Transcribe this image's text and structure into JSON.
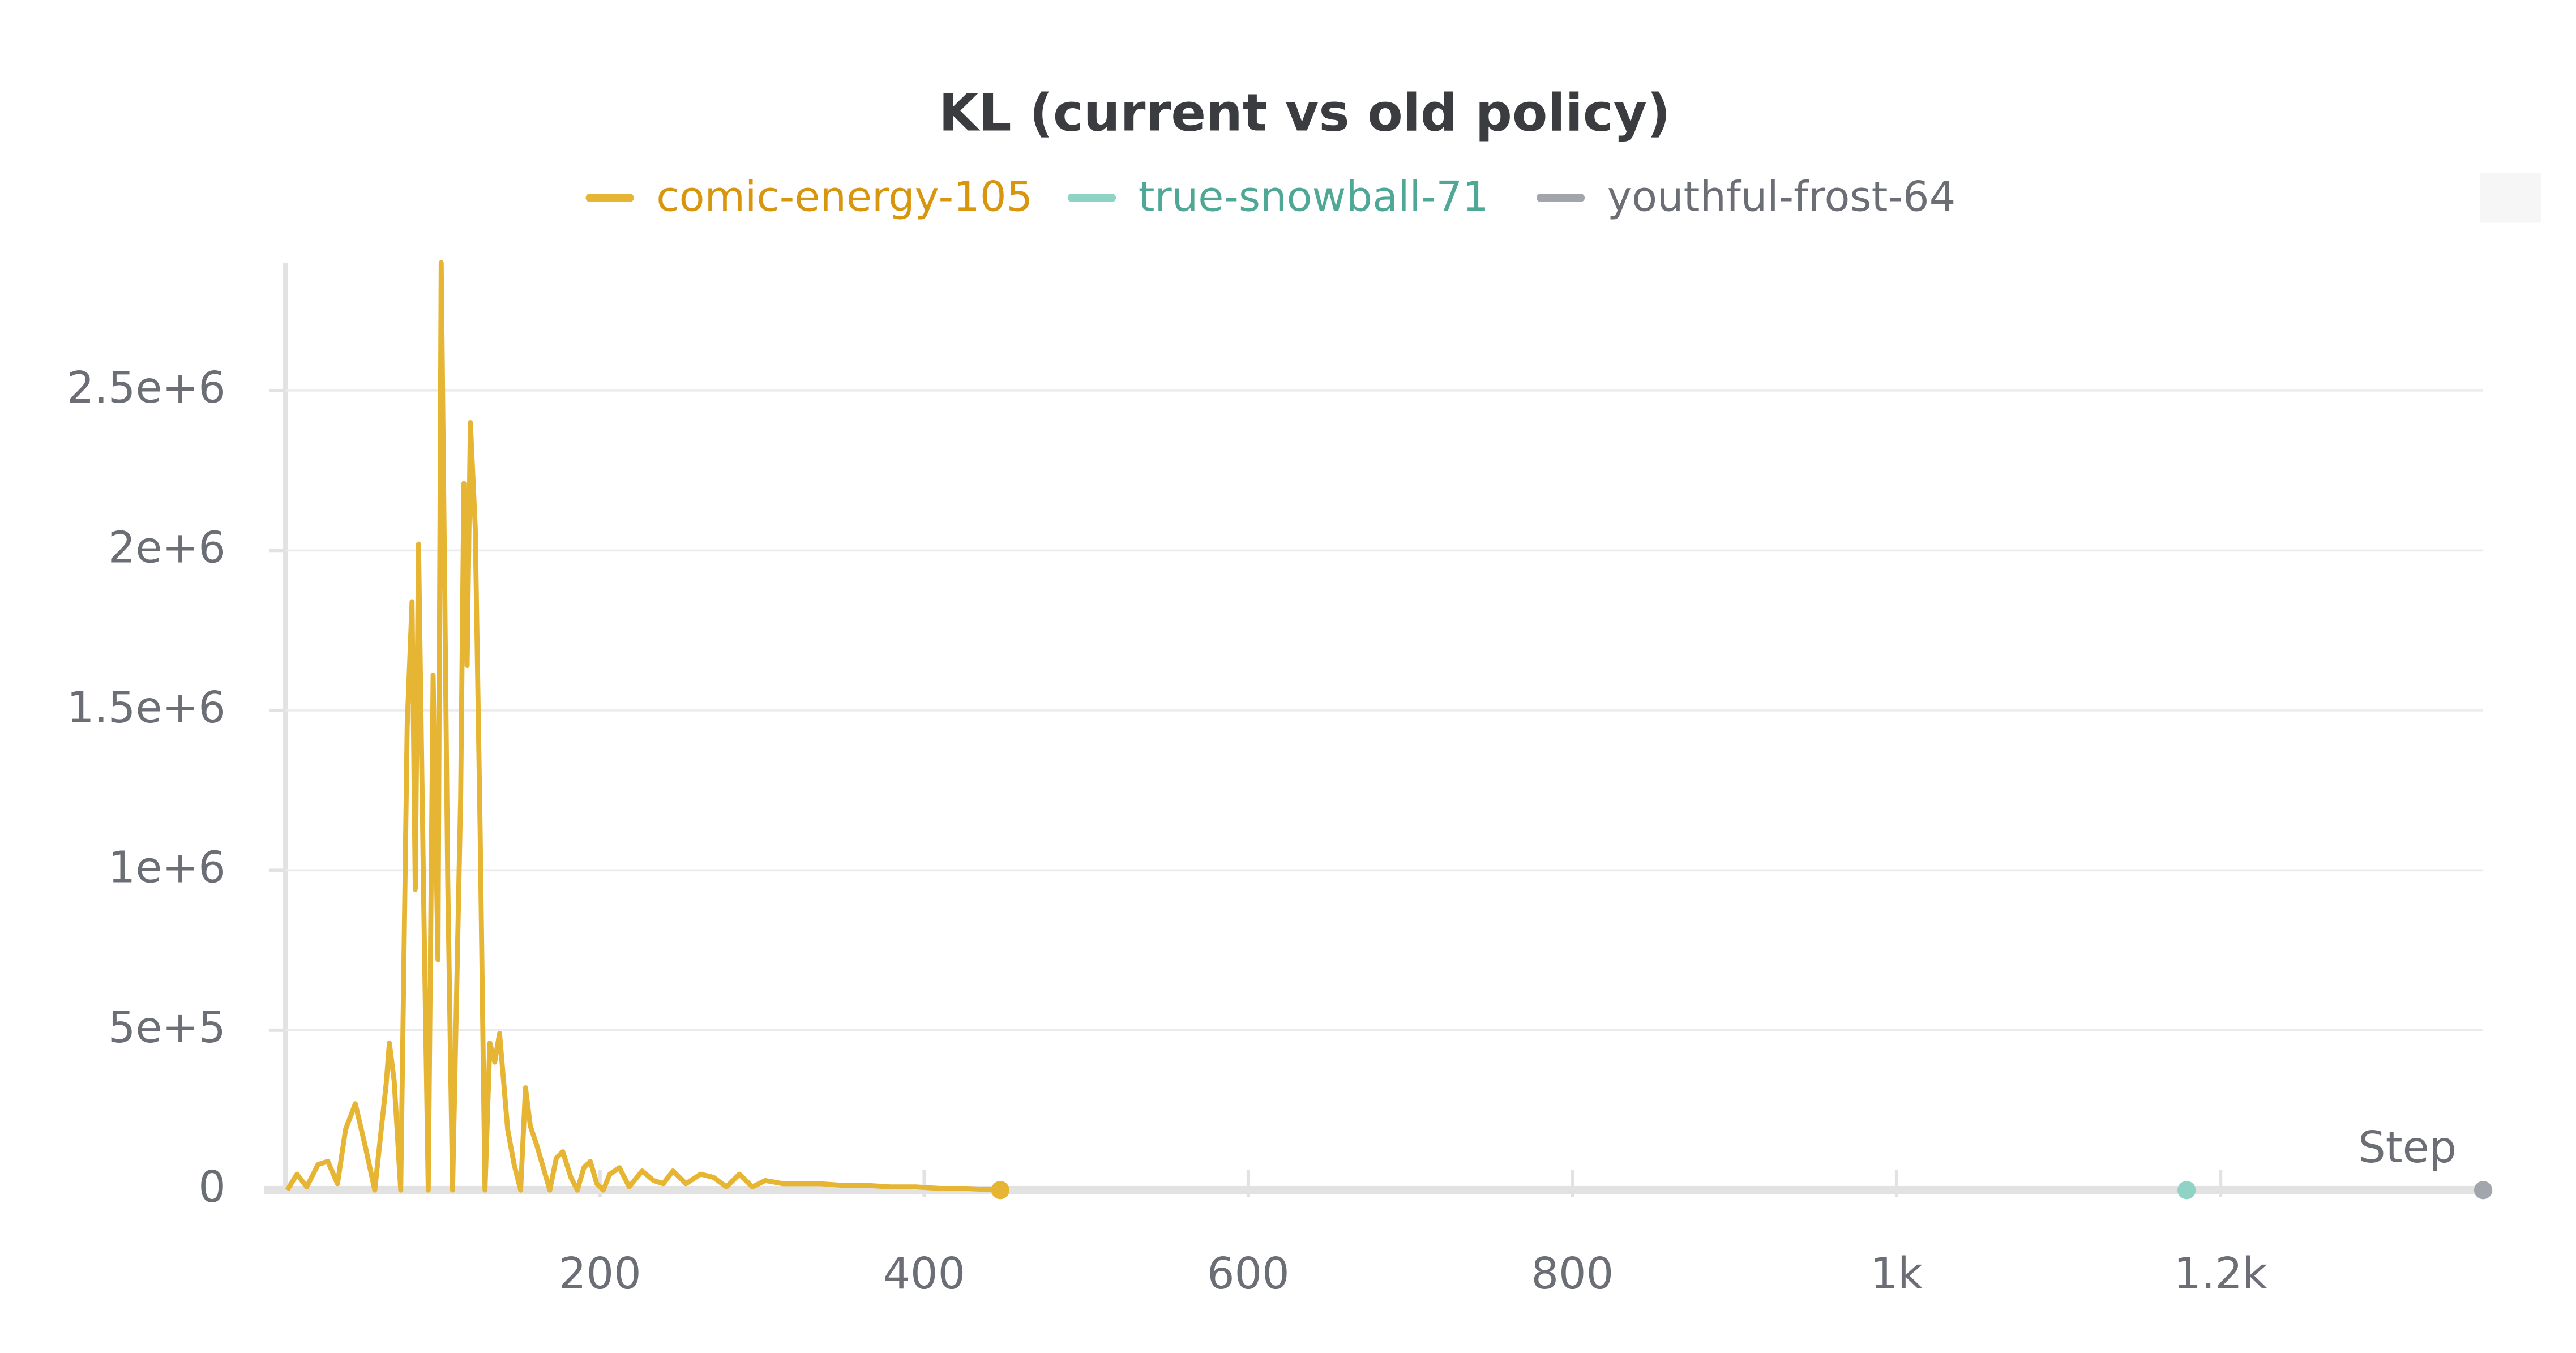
{
  "chart_data": {
    "type": "line",
    "title": "KL (current vs old policy)",
    "x_label": "Step",
    "xlim": [
      6,
      1362
    ],
    "ylim": [
      0,
      2900000
    ],
    "xticks": [
      200,
      400,
      600,
      800,
      {
        "value": 1000,
        "label": "1k"
      },
      {
        "value": 1200,
        "label": "1.2k"
      }
    ],
    "yticks": [
      0,
      {
        "value": 500000,
        "label": "5e+5"
      },
      {
        "value": 1000000,
        "label": "1e+6"
      },
      {
        "value": 1500000,
        "label": "1.5e+6"
      },
      {
        "value": 2000000,
        "label": "2e+6"
      },
      {
        "value": 2500000,
        "label": "2.5e+6"
      }
    ],
    "grid": true,
    "series": [
      {
        "name": "comic-energy-105",
        "color": "#e6b534",
        "x": [
          7,
          13,
          19,
          26,
          32,
          38,
          43,
          49,
          55,
          61,
          65,
          68,
          70,
          73,
          77,
          81,
          84,
          86,
          88,
          91,
          94,
          97,
          100,
          102,
          104,
          106,
          109,
          114,
          116,
          118,
          120,
          123,
          126,
          129,
          132,
          135,
          138,
          143,
          147,
          151,
          154,
          157,
          161,
          165,
          169,
          173,
          177,
          182,
          186,
          190,
          194,
          198,
          202,
          206,
          212,
          218,
          226,
          233,
          239,
          245,
          253,
          262,
          270,
          278,
          286,
          294,
          302,
          313,
          323,
          336,
          349,
          364,
          379,
          395,
          410,
          426,
          447
        ],
        "values": [
          0,
          50000,
          10000,
          80000,
          90000,
          20000,
          190000,
          270000,
          140000,
          0,
          190000,
          330000,
          460000,
          340000,
          0,
          1450000,
          1840000,
          940000,
          2020000,
          970000,
          0,
          1610000,
          720000,
          2900000,
          1960000,
          980000,
          0,
          1230000,
          2210000,
          1640000,
          2400000,
          2070000,
          1130000,
          0,
          460000,
          400000,
          490000,
          190000,
          80000,
          0,
          320000,
          200000,
          140000,
          70000,
          0,
          100000,
          120000,
          40000,
          0,
          70000,
          90000,
          20000,
          0,
          50000,
          70000,
          10000,
          60000,
          30000,
          20000,
          60000,
          20000,
          50000,
          40000,
          10000,
          50000,
          10000,
          30000,
          20000,
          20000,
          20000,
          15000,
          15000,
          10000,
          10000,
          5000,
          5000,
          0
        ]
      },
      {
        "name": "true-snowball-71",
        "color": "#8ed3c6",
        "x": [
          1179
        ],
        "values": [
          0
        ]
      },
      {
        "name": "youthful-frost-64",
        "color": "#a2a5ab",
        "x": [
          1362
        ],
        "values": [
          0
        ]
      }
    ]
  }
}
